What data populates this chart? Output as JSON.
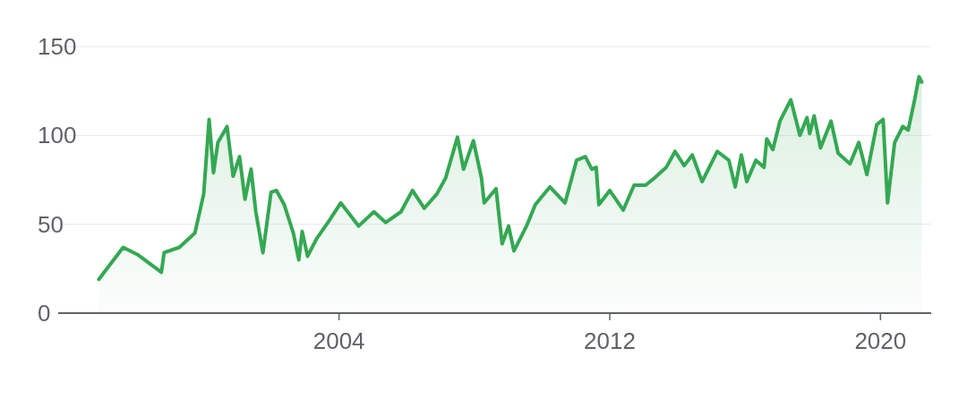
{
  "chart_data": {
    "type": "area",
    "color": "#34a853",
    "grid": "y",
    "xlim": [
      1995.7,
      2021.5
    ],
    "ylim": [
      0,
      150
    ],
    "xticks": [
      2004,
      2012,
      2020
    ],
    "yticks": [
      0,
      50,
      100,
      150
    ],
    "x": [
      1996.9,
      1997.62,
      1998.04,
      1998.75,
      1998.83,
      1999.28,
      1999.74,
      2000.0,
      2000.16,
      2000.29,
      2000.42,
      2000.69,
      2000.87,
      2001.06,
      2001.22,
      2001.4,
      2001.54,
      2001.75,
      2001.99,
      2002.15,
      2002.38,
      2002.65,
      2002.81,
      2002.91,
      2003.07,
      2003.34,
      2003.71,
      2004.05,
      2004.58,
      2005.03,
      2005.38,
      2005.83,
      2006.17,
      2006.52,
      2006.89,
      2007.15,
      2007.5,
      2007.68,
      2007.97,
      2008.21,
      2008.29,
      2008.64,
      2008.82,
      2009.01,
      2009.17,
      2009.54,
      2009.8,
      2010.23,
      2010.68,
      2011.02,
      2011.28,
      2011.47,
      2011.6,
      2011.68,
      2012.0,
      2012.4,
      2012.72,
      2013.06,
      2013.32,
      2013.67,
      2013.93,
      2014.2,
      2014.44,
      2014.73,
      2015.18,
      2015.52,
      2015.71,
      2015.89,
      2016.05,
      2016.32,
      2016.56,
      2016.64,
      2016.82,
      2017.03,
      2017.35,
      2017.62,
      2017.83,
      2017.91,
      2018.04,
      2018.23,
      2018.54,
      2018.75,
      2019.1,
      2019.36,
      2019.6,
      2019.89,
      2020.08,
      2020.21,
      2020.42,
      2020.66,
      2020.82,
      2021.01,
      2021.14,
      2021.22
    ],
    "values": [
      19,
      37,
      33,
      23,
      34,
      37,
      45,
      67,
      109,
      79,
      96,
      105,
      77,
      88,
      64,
      81,
      57,
      34,
      68,
      69,
      61,
      45,
      30,
      46,
      32,
      42,
      52,
      62,
      49,
      57,
      51,
      57,
      69,
      59,
      67,
      76,
      99,
      81,
      97,
      76,
      62,
      70,
      39,
      49,
      35,
      49,
      61,
      71,
      62,
      86,
      88,
      81,
      82,
      61,
      69,
      58,
      72,
      72,
      76,
      82,
      91,
      83,
      89,
      74,
      91,
      86,
      71,
      89,
      74,
      86,
      82,
      98,
      92,
      108,
      120,
      100,
      110,
      101,
      111,
      93,
      108,
      90,
      84,
      96,
      78,
      106,
      109,
      62,
      96,
      105,
      103,
      120,
      133,
      130
    ]
  }
}
